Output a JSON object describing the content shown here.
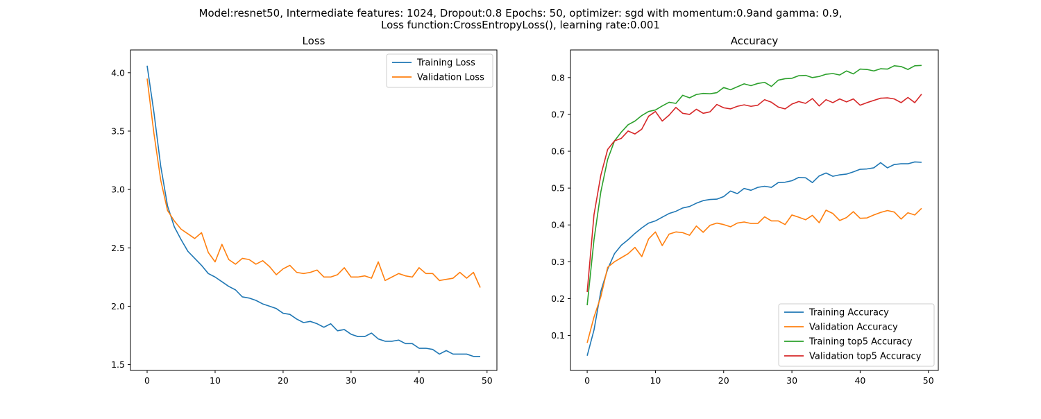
{
  "figure": {
    "suptitle_line1": "Model:resnet50, Intermediate features: 1024, Dropout:0.8 Epochs: 50, optimizer: sgd with momentum:0.9and gamma: 0.9,",
    "suptitle_line2": "Loss function:CrossEntropyLoss(), learning rate:0.001"
  },
  "chart_data": [
    {
      "type": "line",
      "title": "Loss",
      "xlabel": "",
      "ylabel": "",
      "xlim": [
        -2.45,
        51.45
      ],
      "ylim": [
        1.45,
        4.195
      ],
      "xticks": [
        0,
        10,
        20,
        30,
        40,
        50
      ],
      "xtick_labels": [
        "0",
        "10",
        "20",
        "30",
        "40",
        "50"
      ],
      "yticks": [
        1.5,
        2.0,
        2.5,
        3.0,
        3.5,
        4.0
      ],
      "ytick_labels": [
        "1.5",
        "2.0",
        "2.5",
        "3.0",
        "3.5",
        "4.0"
      ],
      "grid": false,
      "legend_position": "upper right",
      "x": [
        0,
        1,
        2,
        3,
        4,
        5,
        6,
        7,
        8,
        9,
        10,
        11,
        12,
        13,
        14,
        15,
        16,
        17,
        18,
        19,
        20,
        21,
        22,
        23,
        24,
        25,
        26,
        27,
        28,
        29,
        30,
        31,
        32,
        33,
        34,
        35,
        36,
        37,
        38,
        39,
        40,
        41,
        42,
        43,
        44,
        45,
        46,
        47,
        48,
        49
      ],
      "series": [
        {
          "name": "Training Loss",
          "color": "#1f77b4",
          "values": [
            4.06,
            3.66,
            3.2,
            2.86,
            2.68,
            2.57,
            2.47,
            2.41,
            2.35,
            2.28,
            2.25,
            2.21,
            2.17,
            2.14,
            2.08,
            2.07,
            2.05,
            2.02,
            2.0,
            1.98,
            1.94,
            1.93,
            1.89,
            1.86,
            1.87,
            1.85,
            1.82,
            1.85,
            1.79,
            1.8,
            1.76,
            1.74,
            1.74,
            1.77,
            1.72,
            1.7,
            1.7,
            1.71,
            1.68,
            1.68,
            1.64,
            1.64,
            1.63,
            1.59,
            1.62,
            1.59,
            1.59,
            1.59,
            1.57,
            1.57
          ]
        },
        {
          "name": "Validation Loss",
          "color": "#ff7f0e",
          "values": [
            3.95,
            3.48,
            3.08,
            2.82,
            2.73,
            2.66,
            2.62,
            2.58,
            2.63,
            2.46,
            2.38,
            2.53,
            2.4,
            2.36,
            2.41,
            2.4,
            2.36,
            2.39,
            2.34,
            2.27,
            2.32,
            2.35,
            2.29,
            2.28,
            2.29,
            2.31,
            2.25,
            2.25,
            2.27,
            2.33,
            2.25,
            2.25,
            2.26,
            2.24,
            2.38,
            2.22,
            2.25,
            2.28,
            2.26,
            2.25,
            2.33,
            2.28,
            2.28,
            2.22,
            2.23,
            2.24,
            2.29,
            2.24,
            2.29,
            2.16
          ]
        }
      ]
    },
    {
      "type": "line",
      "title": "Accuracy",
      "xlabel": "",
      "ylabel": "",
      "xlim": [
        -2.45,
        51.45
      ],
      "ylim": [
        0.005,
        0.875
      ],
      "xticks": [
        0,
        10,
        20,
        30,
        40,
        50
      ],
      "xtick_labels": [
        "0",
        "10",
        "20",
        "30",
        "40",
        "50"
      ],
      "yticks": [
        0.1,
        0.2,
        0.3,
        0.4,
        0.5,
        0.6,
        0.7,
        0.8
      ],
      "ytick_labels": [
        "0.1",
        "0.2",
        "0.3",
        "0.4",
        "0.5",
        "0.6",
        "0.7",
        "0.8"
      ],
      "grid": false,
      "legend_position": "lower right",
      "x": [
        0,
        1,
        2,
        3,
        4,
        5,
        6,
        7,
        8,
        9,
        10,
        11,
        12,
        13,
        14,
        15,
        16,
        17,
        18,
        19,
        20,
        21,
        22,
        23,
        24,
        25,
        26,
        27,
        28,
        29,
        30,
        31,
        32,
        33,
        34,
        35,
        36,
        37,
        38,
        39,
        40,
        41,
        42,
        43,
        44,
        45,
        46,
        47,
        48,
        49
      ],
      "series": [
        {
          "name": "Training Accuracy",
          "color": "#1f77b4",
          "values": [
            0.045,
            0.115,
            0.22,
            0.28,
            0.322,
            0.345,
            0.36,
            0.377,
            0.392,
            0.405,
            0.411,
            0.421,
            0.431,
            0.437,
            0.446,
            0.45,
            0.459,
            0.466,
            0.469,
            0.47,
            0.477,
            0.492,
            0.485,
            0.499,
            0.494,
            0.502,
            0.505,
            0.502,
            0.515,
            0.516,
            0.52,
            0.529,
            0.528,
            0.515,
            0.533,
            0.541,
            0.532,
            0.536,
            0.538,
            0.544,
            0.551,
            0.552,
            0.555,
            0.569,
            0.555,
            0.564,
            0.566,
            0.566,
            0.571,
            0.57
          ]
        },
        {
          "name": "Validation Accuracy",
          "color": "#ff7f0e",
          "values": [
            0.08,
            0.15,
            0.205,
            0.285,
            0.3,
            0.311,
            0.322,
            0.339,
            0.314,
            0.362,
            0.381,
            0.344,
            0.375,
            0.381,
            0.379,
            0.372,
            0.397,
            0.38,
            0.399,
            0.405,
            0.401,
            0.395,
            0.405,
            0.408,
            0.404,
            0.404,
            0.422,
            0.411,
            0.411,
            0.401,
            0.427,
            0.421,
            0.414,
            0.426,
            0.406,
            0.44,
            0.431,
            0.412,
            0.42,
            0.436,
            0.418,
            0.419,
            0.427,
            0.434,
            0.439,
            0.435,
            0.416,
            0.433,
            0.427,
            0.445
          ]
        },
        {
          "name": "Training top5 Accuracy",
          "color": "#2ca02c",
          "values": [
            0.182,
            0.36,
            0.49,
            0.578,
            0.628,
            0.652,
            0.672,
            0.682,
            0.697,
            0.708,
            0.712,
            0.723,
            0.733,
            0.73,
            0.752,
            0.745,
            0.754,
            0.757,
            0.756,
            0.759,
            0.773,
            0.767,
            0.775,
            0.783,
            0.778,
            0.784,
            0.787,
            0.776,
            0.793,
            0.797,
            0.798,
            0.805,
            0.806,
            0.8,
            0.803,
            0.809,
            0.811,
            0.807,
            0.818,
            0.81,
            0.823,
            0.822,
            0.818,
            0.824,
            0.823,
            0.832,
            0.83,
            0.822,
            0.832,
            0.833
          ]
        },
        {
          "name": "Validation top5 Accuracy",
          "color": "#d62728",
          "values": [
            0.218,
            0.428,
            0.535,
            0.605,
            0.628,
            0.635,
            0.655,
            0.647,
            0.66,
            0.695,
            0.708,
            0.682,
            0.698,
            0.719,
            0.703,
            0.7,
            0.714,
            0.703,
            0.707,
            0.727,
            0.718,
            0.715,
            0.722,
            0.726,
            0.722,
            0.725,
            0.74,
            0.733,
            0.72,
            0.715,
            0.728,
            0.735,
            0.73,
            0.743,
            0.723,
            0.74,
            0.732,
            0.742,
            0.734,
            0.742,
            0.725,
            0.732,
            0.738,
            0.744,
            0.745,
            0.742,
            0.732,
            0.746,
            0.732,
            0.755
          ]
        }
      ]
    }
  ]
}
